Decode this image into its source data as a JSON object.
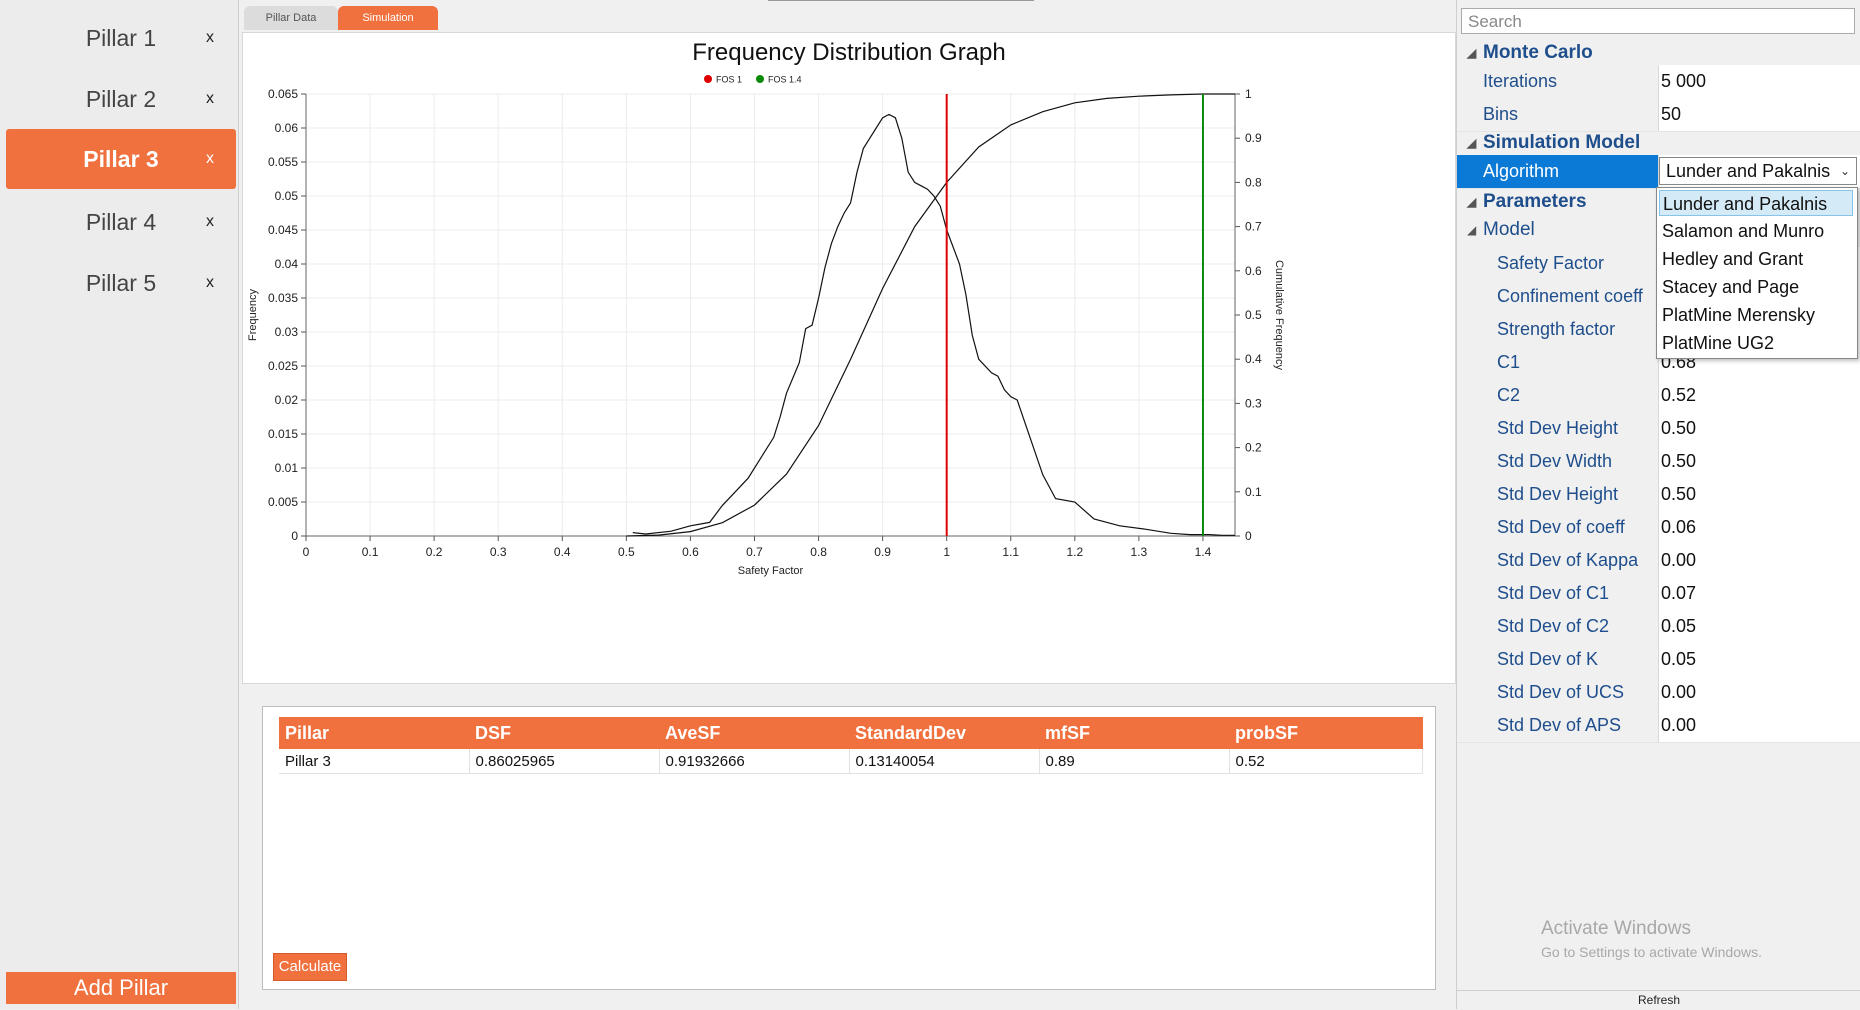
{
  "sidebar": {
    "pillars": [
      {
        "label": "Pillar 1",
        "close": "x"
      },
      {
        "label": "Pillar 2",
        "close": "x"
      },
      {
        "label": "Pillar 3",
        "close": "x"
      },
      {
        "label": "Pillar 4",
        "close": "x"
      },
      {
        "label": "Pillar 5",
        "close": "x"
      }
    ],
    "active_index": 2,
    "add_label": "Add Pillar"
  },
  "tabs": [
    {
      "label": "Pillar Data",
      "active": false
    },
    {
      "label": "Simulation",
      "active": true
    }
  ],
  "chart_data": {
    "type": "line",
    "title": "Frequency Distribution Graph",
    "xlabel": "Safety Factor",
    "ylabel": "Frequency",
    "y2label": "Cumulative Frequency",
    "xlim": [
      0,
      1.45
    ],
    "ylim": [
      0,
      0.065
    ],
    "y2lim": [
      0,
      1
    ],
    "xticks": [
      "0",
      "0.1",
      "0.2",
      "0.3",
      "0.4",
      "0.5",
      "0.6",
      "0.7",
      "0.8",
      "0.9",
      "1",
      "1.1",
      "1.2",
      "1.3",
      "1.4"
    ],
    "yticks": [
      "0",
      "0.005",
      "0.01",
      "0.015",
      "0.02",
      "0.025",
      "0.03",
      "0.035",
      "0.04",
      "0.045",
      "0.05",
      "0.055",
      "0.06",
      "0.065"
    ],
    "y2ticks": [
      "0",
      "0.1",
      "0.2",
      "0.3",
      "0.4",
      "0.5",
      "0.6",
      "0.7",
      "0.8",
      "0.9",
      "1"
    ],
    "grid": true,
    "legend_position": "top-center",
    "legend": [
      {
        "name": "FOS 1",
        "color": "#e00000"
      },
      {
        "name": "FOS 1.4",
        "color": "#0a8a0a"
      }
    ],
    "markers": [
      {
        "name": "FOS 1",
        "x": 1.0,
        "color": "#e00000"
      },
      {
        "name": "FOS 1.4",
        "x": 1.4,
        "color": "#0a8a0a"
      }
    ],
    "series": [
      {
        "axis": "left",
        "x": [
          0.51,
          0.53,
          0.57,
          0.6,
          0.63,
          0.65,
          0.67,
          0.69,
          0.71,
          0.73,
          0.74,
          0.75,
          0.77,
          0.78,
          0.79,
          0.8,
          0.81,
          0.82,
          0.83,
          0.84,
          0.85,
          0.86,
          0.87,
          0.88,
          0.89,
          0.9,
          0.91,
          0.92,
          0.93,
          0.94,
          0.95,
          0.96,
          0.97,
          0.98,
          0.99,
          1.0,
          1.01,
          1.02,
          1.03,
          1.04,
          1.05,
          1.07,
          1.08,
          1.09,
          1.1,
          1.11,
          1.13,
          1.15,
          1.17,
          1.2,
          1.23,
          1.27,
          1.31,
          1.35,
          1.38,
          1.41,
          1.43,
          1.45
        ],
        "values": [
          0.0005,
          0.0003,
          0.0007,
          0.0015,
          0.002,
          0.0045,
          0.0065,
          0.0085,
          0.0115,
          0.0145,
          0.0175,
          0.021,
          0.0255,
          0.0305,
          0.031,
          0.035,
          0.0395,
          0.043,
          0.0455,
          0.0475,
          0.049,
          0.0535,
          0.057,
          0.0585,
          0.06,
          0.0615,
          0.062,
          0.0615,
          0.0585,
          0.0535,
          0.052,
          0.0515,
          0.051,
          0.05,
          0.0485,
          0.045,
          0.0425,
          0.04,
          0.0355,
          0.0295,
          0.026,
          0.024,
          0.0235,
          0.0215,
          0.0205,
          0.02,
          0.0145,
          0.009,
          0.0055,
          0.005,
          0.0025,
          0.0015,
          0.001,
          0.0004,
          0.0002,
          0.0002,
          0.0001,
          0.0001
        ]
      },
      {
        "axis": "right",
        "x": [
          0.5,
          0.55,
          0.6,
          0.65,
          0.7,
          0.75,
          0.8,
          0.85,
          0.9,
          0.95,
          1.0,
          1.05,
          1.1,
          1.15,
          1.2,
          1.25,
          1.3,
          1.35,
          1.4,
          1.45
        ],
        "values": [
          0.0,
          0.002,
          0.01,
          0.03,
          0.07,
          0.14,
          0.25,
          0.4,
          0.56,
          0.7,
          0.8,
          0.88,
          0.93,
          0.96,
          0.98,
          0.99,
          0.995,
          0.998,
          1.0,
          1.0
        ]
      }
    ]
  },
  "results": {
    "headers": [
      "Pillar",
      "DSF",
      "AveSF",
      "StandardDev",
      "mfSF",
      "probSF"
    ],
    "rows": [
      [
        "Pillar 3",
        "0.86025965",
        "0.91932666",
        "0.13140054",
        "0.89",
        "0.52"
      ]
    ],
    "calculate_label": "Calculate"
  },
  "properties": {
    "search_placeholder": "Search",
    "monte_carlo": {
      "title": "Monte Carlo",
      "iterations_label": "Iterations",
      "iterations_value": "5 000",
      "bins_label": "Bins",
      "bins_value": "50"
    },
    "simulation_model": {
      "title": "Simulation Model",
      "algorithm_label": "Algorithm",
      "algorithm_value": "Lunder and Pakalnis",
      "options": [
        "Lunder and Pakalnis",
        "Salamon and Munro",
        "Hedley and Grant",
        "Stacey and Page",
        "PlatMine Merensky",
        "PlatMine UG2"
      ]
    },
    "parameters_title": "Parameters",
    "model_title": "Model",
    "model_items": [
      {
        "label": "Safety Factor",
        "value": ""
      },
      {
        "label": "Confinement coeff",
        "value": ""
      },
      {
        "label": "Strength factor",
        "value": ""
      },
      {
        "label": "C1",
        "value": "0.68"
      },
      {
        "label": "C2",
        "value": "0.52"
      },
      {
        "label": "Std Dev Height",
        "value": "0.50"
      },
      {
        "label": "Std Dev Width",
        "value": "0.50"
      },
      {
        "label": "Std Dev Height",
        "value": "0.50"
      },
      {
        "label": "Std Dev of coeff",
        "value": "0.06"
      },
      {
        "label": "Std Dev of Kappa",
        "value": "0.00"
      },
      {
        "label": "Std Dev of C1",
        "value": "0.07"
      },
      {
        "label": "Std Dev of C2",
        "value": "0.05"
      },
      {
        "label": "Std Dev of K",
        "value": "0.05"
      },
      {
        "label": "Std Dev of UCS",
        "value": "0.00"
      },
      {
        "label": "Std Dev of APS",
        "value": "0.00"
      }
    ],
    "refresh_label": "Refresh",
    "watermark_title": "Activate Windows",
    "watermark_sub": "Go to Settings to activate Windows."
  }
}
